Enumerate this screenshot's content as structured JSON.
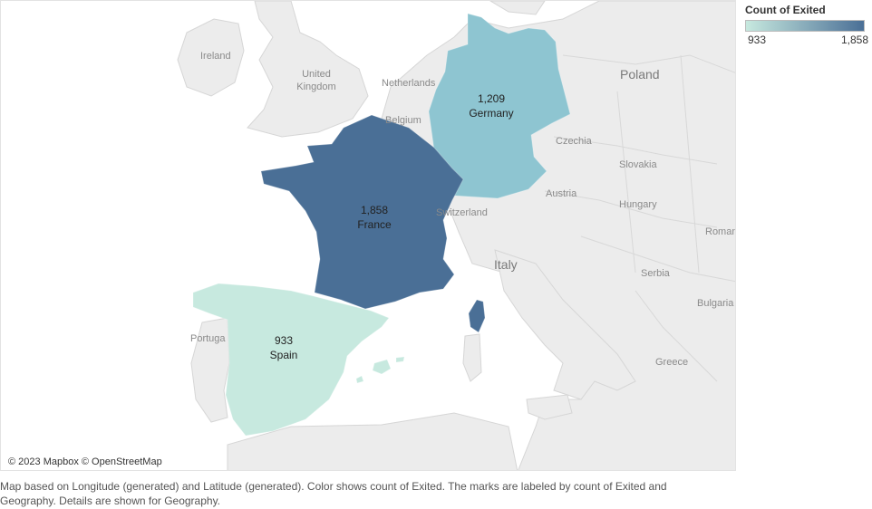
{
  "legend": {
    "title": "Count of Exited",
    "min_label": "933",
    "max_label": "1,858",
    "min_color": "#c7e9df",
    "max_color": "#4a6f96"
  },
  "attribution": "© 2023 Mapbox © OpenStreetMap",
  "caption": "Map based on Longitude (generated) and Latitude (generated).  Color shows count of Exited.  The marks are labeled by count of Exited and Geography.  Details are shown for Geography.",
  "map_data": {
    "measure": "Count of Exited",
    "regions": [
      {
        "geography": "France",
        "value": 1858,
        "value_label": "1,858",
        "color": "#4a6f96"
      },
      {
        "geography": "Germany",
        "value": 1209,
        "value_label": "1,209",
        "color": "#8ec5d1"
      },
      {
        "geography": "Spain",
        "value": 933,
        "value_label": "933",
        "color": "#c7e9df"
      }
    ],
    "basemap_labels": {
      "ireland": "Ireland",
      "uk": "United Kingdom",
      "netherlands": "Netherlands",
      "belgium": "Belgium",
      "poland": "Poland",
      "czechia": "Czechia",
      "slovakia": "Slovakia",
      "austria": "Austria",
      "hungary": "Hungary",
      "switzerland": "Switzerland",
      "italy": "Italy",
      "romania": "Roman",
      "serbia": "Serbia",
      "bulgaria": "Bulgaria",
      "greece": "Greece",
      "portugal": "Portuga"
    }
  }
}
